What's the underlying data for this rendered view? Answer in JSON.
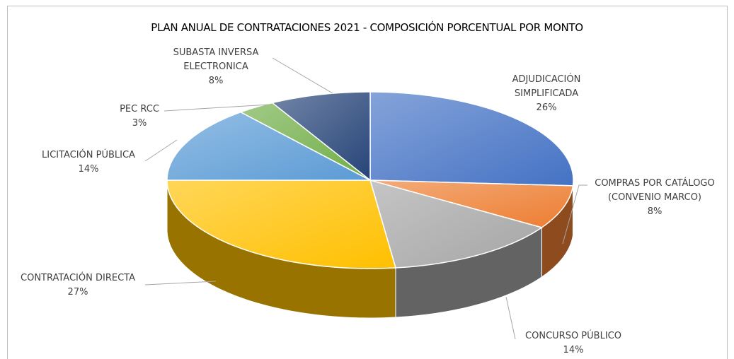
{
  "chart_data": {
    "type": "pie3d",
    "title": "PLAN ANUAL DE CONTRATACIONES 2021 - COMPOSICIÓN PORCENTUAL POR MONTO",
    "categories": [
      "ADJUDICACIÓN SIMPLIFICADA",
      "COMPRAS POR CATÁLOGO (CONVENIO MARCO)",
      "CONCURSO PÚBLICO",
      "CONTRATACIÓN DIRECTA",
      "LICITACIÓN PÚBLICA",
      "PEC RCC",
      "SUBASTA INVERSA ELECTRONICA"
    ],
    "values": [
      26,
      8,
      14,
      27,
      14,
      3,
      8
    ],
    "value_labels": [
      "26%",
      "8%",
      "14%",
      "27%",
      "14%",
      "3%",
      "8%"
    ],
    "colors": [
      "#4472c4",
      "#ed7d31",
      "#a5a5a5",
      "#ffc000",
      "#5b9bd5",
      "#70ad47",
      "#264478"
    ]
  }
}
